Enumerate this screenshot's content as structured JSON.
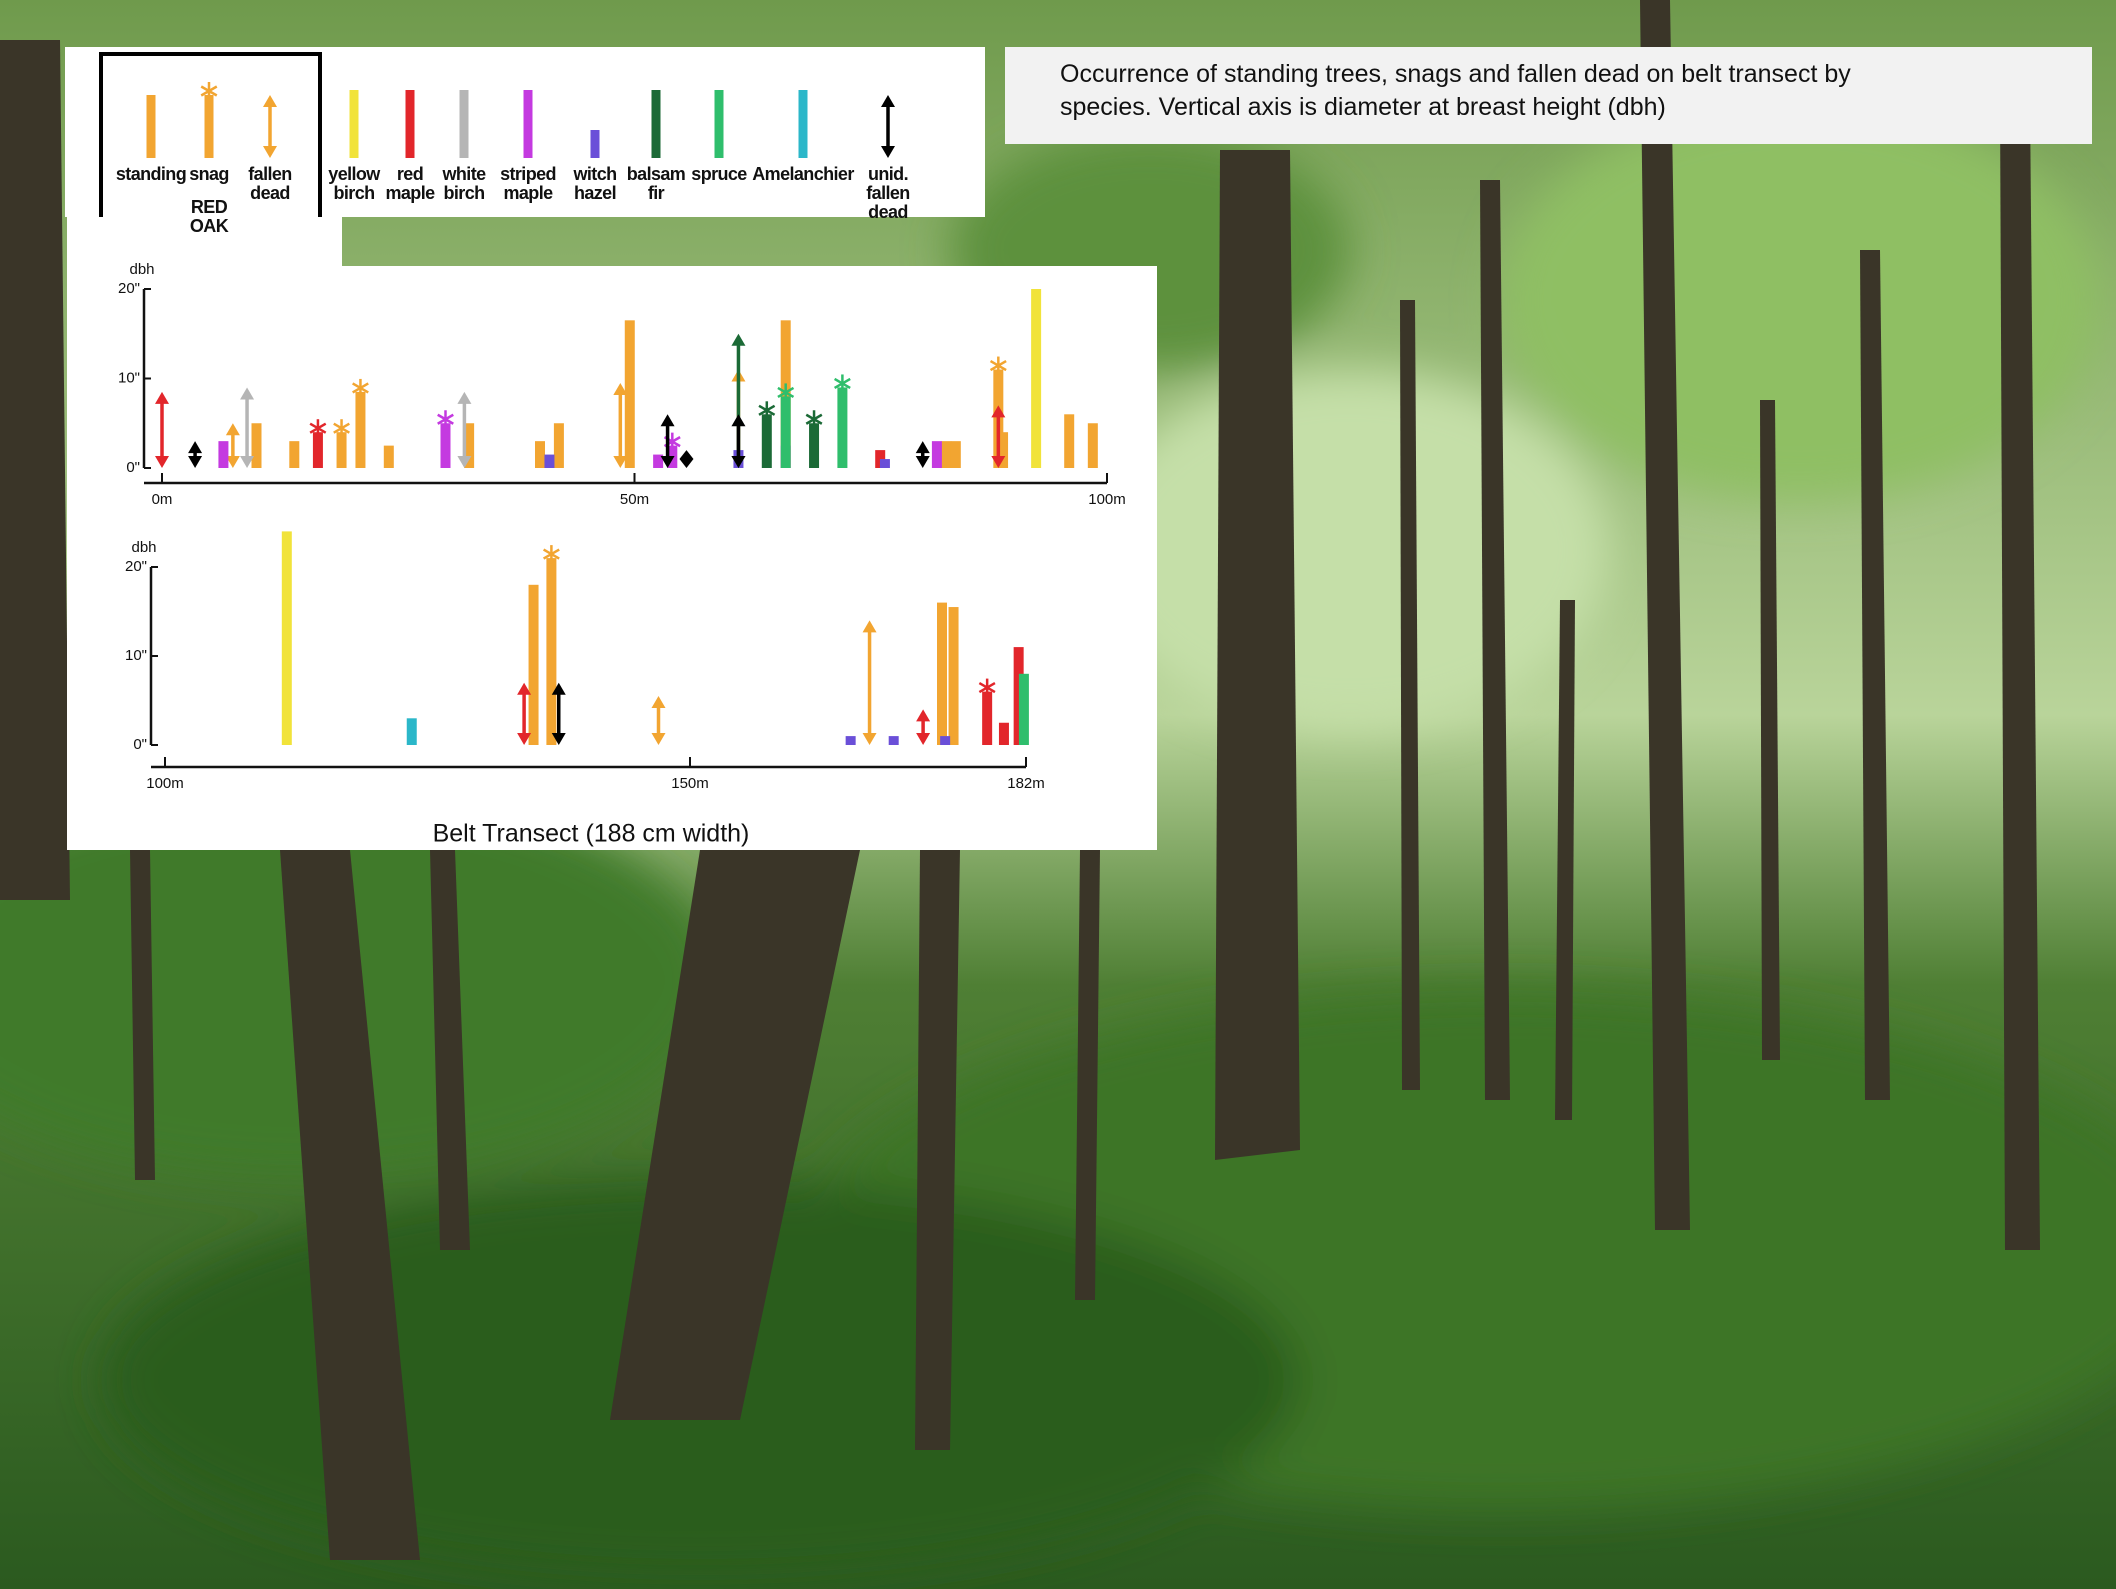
{
  "title": "Occurrence of standing trees, snags and fallen dead on belt transect by species. Vertical axis is diameter at breast height (dbh)",
  "caption": "Belt Transect (188 cm width)",
  "legend": {
    "group": {
      "name": "RED OAK",
      "color": "#f2a531"
    },
    "forms": [
      "standing",
      "snag",
      "fallen dead"
    ],
    "species": [
      {
        "name": "yellow birch",
        "color": "#f1e33a",
        "form": "standing"
      },
      {
        "name": "red maple",
        "color": "#e2262b",
        "form": "standing"
      },
      {
        "name": "white birch",
        "color": "#b5b5b5",
        "form": "standing"
      },
      {
        "name": "striped maple",
        "color": "#c43ae0",
        "form": "standing"
      },
      {
        "name": "witch hazel",
        "color": "#6a4fd8",
        "form": "standing"
      },
      {
        "name": "balsam fir",
        "color": "#1b6a36",
        "form": "standing"
      },
      {
        "name": "spruce",
        "color": "#2fbe6c",
        "form": "standing"
      },
      {
        "name": "Amelanchier",
        "color": "#2bb7c9",
        "form": "standing"
      },
      {
        "name": "unid. fallen dead",
        "color": "#000000",
        "form": "fallen dead"
      }
    ]
  },
  "chart_data": [
    {
      "type": "bar",
      "y_label": "dbh",
      "xlim": [
        0,
        100
      ],
      "xticks": [
        {
          "value": 0,
          "label": "0m"
        },
        {
          "value": 50,
          "label": "50m"
        },
        {
          "value": 100,
          "label": "100m"
        }
      ],
      "ylim": [
        0,
        20
      ],
      "yticks": [
        {
          "value": 0,
          "label": "0\""
        },
        {
          "value": 10,
          "label": "10\""
        },
        {
          "value": 20,
          "label": "20\""
        }
      ],
      "series": [
        {
          "name": "RED OAK",
          "x": [
            7.5,
            10,
            14,
            19,
            21,
            24,
            32.5,
            40,
            42,
            48.5,
            49.5,
            61,
            66,
            83,
            84,
            88.5,
            89,
            96,
            98.5
          ],
          "values": [
            5,
            5,
            3,
            4,
            8.5,
            2.5,
            5,
            3,
            5,
            9.5,
            16.5,
            11,
            16.5,
            3,
            3,
            11,
            4,
            6,
            5
          ],
          "forms": [
            "fallen dead",
            "standing",
            "standing",
            "snag",
            "snag",
            "standing",
            "standing",
            "standing",
            "standing",
            "fallen dead",
            "standing",
            "fallen dead",
            "standing",
            "standing",
            "standing",
            "snag",
            "standing",
            "standing",
            "standing"
          ]
        },
        {
          "name": "yellow birch",
          "x": [
            92.5
          ],
          "values": [
            20
          ],
          "forms": [
            "standing"
          ]
        },
        {
          "name": "red maple",
          "x": [
            0,
            16.5,
            76,
            88.5
          ],
          "values": [
            8.5,
            4,
            2,
            7
          ],
          "forms": [
            "fallen dead",
            "snag",
            "standing",
            "fallen dead"
          ]
        },
        {
          "name": "white birch",
          "x": [
            9,
            32
          ],
          "values": [
            9,
            8.5
          ],
          "forms": [
            "fallen dead",
            "fallen dead"
          ]
        },
        {
          "name": "striped maple",
          "x": [
            6.5,
            30,
            52.5,
            54,
            66,
            82
          ],
          "values": [
            3,
            5,
            1.5,
            2.5,
            2.5,
            3
          ],
          "forms": [
            "standing",
            "snag",
            "standing",
            "snag",
            "standing",
            "standing"
          ]
        },
        {
          "name": "witch hazel",
          "x": [
            41,
            61,
            76.5
          ],
          "values": [
            1.5,
            2,
            1
          ],
          "forms": [
            "standing",
            "standing",
            "standing"
          ]
        },
        {
          "name": "balsam fir",
          "x": [
            61,
            64,
            69
          ],
          "values": [
            15,
            6,
            5
          ],
          "forms": [
            "fallen dead",
            "snag",
            "snag"
          ]
        },
        {
          "name": "spruce",
          "x": [
            66,
            72
          ],
          "values": [
            8,
            9
          ],
          "forms": [
            "snag",
            "snag"
          ]
        },
        {
          "name": "unid. fallen dead",
          "x": [
            3.5,
            53.5,
            55.5,
            61,
            80.5
          ],
          "values": [
            3,
            6,
            2,
            6,
            3
          ],
          "forms": [
            "fallen dead",
            "fallen dead",
            "fallen dead",
            "fallen dead",
            "fallen dead"
          ]
        }
      ]
    },
    {
      "type": "bar",
      "y_label": "dbh",
      "xlim": [
        100,
        182
      ],
      "xticks": [
        {
          "value": 100,
          "label": "100m"
        },
        {
          "value": 150,
          "label": "150m"
        },
        {
          "value": 182,
          "label": "182m"
        }
      ],
      "ylim": [
        0,
        20
      ],
      "yticks": [
        {
          "value": 0,
          "label": "0\""
        },
        {
          "value": 10,
          "label": "10\""
        },
        {
          "value": 20,
          "label": "20\""
        }
      ],
      "series": [
        {
          "name": "RED OAK",
          "x": [
            135.1,
            136.8,
            147,
            167.1,
            174,
            175.1
          ],
          "values": [
            18,
            21,
            5.5,
            14,
            16,
            15.5
          ],
          "forms": [
            "standing",
            "snag",
            "fallen dead",
            "fallen dead",
            "standing",
            "standing"
          ]
        },
        {
          "name": "yellow birch",
          "x": [
            111.6
          ],
          "values": [
            24
          ],
          "forms": [
            "standing"
          ]
        },
        {
          "name": "red maple",
          "x": [
            134.2,
            172.2,
            178.3,
            179.9,
            181.3
          ],
          "values": [
            7,
            4,
            6,
            2.5,
            11
          ],
          "forms": [
            "fallen dead",
            "fallen dead",
            "snag",
            "standing",
            "standing"
          ]
        },
        {
          "name": "witch hazel",
          "x": [
            165.3,
            169.4,
            174.3
          ],
          "values": [
            1,
            1,
            1
          ],
          "forms": [
            "standing",
            "standing",
            "standing"
          ]
        },
        {
          "name": "spruce",
          "x": [
            181.8
          ],
          "values": [
            8
          ],
          "forms": [
            "standing"
          ]
        },
        {
          "name": "Amelanchier",
          "x": [
            123.5
          ],
          "values": [
            3
          ],
          "forms": [
            "standing"
          ]
        },
        {
          "name": "unid. fallen dead",
          "x": [
            137.5
          ],
          "values": [
            7
          ],
          "forms": [
            "fallen dead"
          ]
        }
      ]
    }
  ]
}
